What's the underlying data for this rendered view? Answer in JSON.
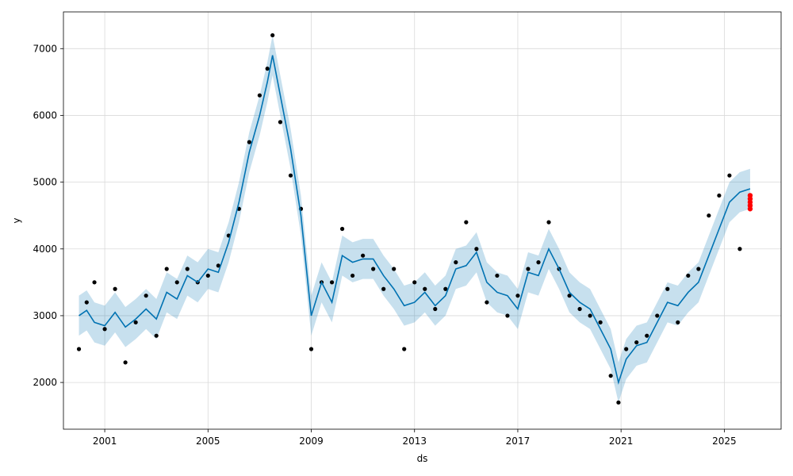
{
  "chart_data": {
    "type": "line",
    "title": "",
    "xlabel": "ds",
    "ylabel": "y",
    "xlim": [
      1999.4,
      2027.2
    ],
    "ylim": [
      1300,
      7550
    ],
    "grid": true,
    "legend": "none",
    "x_ticks": [
      2001,
      2005,
      2009,
      2013,
      2017,
      2021,
      2025
    ],
    "x_tick_labels": [
      "2001",
      "2005",
      "2009",
      "2013",
      "2017",
      "2021",
      "2025"
    ],
    "y_ticks": [
      2000,
      3000,
      4000,
      5000,
      6000,
      7000
    ],
    "y_tick_labels": [
      "2000",
      "3000",
      "4000",
      "5000",
      "6000",
      "7000"
    ],
    "colors": {
      "observed": "#000000",
      "forecast": "#0072B2",
      "band": "#0072B2",
      "highlight": "#FF0000"
    },
    "series": [
      {
        "role": "forecast",
        "x": [
          2000.0,
          2000.3,
          2000.6,
          2001.0,
          2001.4,
          2001.8,
          2002.2,
          2002.6,
          2003.0,
          2003.4,
          2003.8,
          2004.2,
          2004.6,
          2005.0,
          2005.4,
          2005.8,
          2006.2,
          2006.6,
          2007.0,
          2007.3,
          2007.5,
          2007.8,
          2008.2,
          2008.6,
          2009.0,
          2009.4,
          2009.8,
          2010.2,
          2010.6,
          2011.0,
          2011.4,
          2011.8,
          2012.2,
          2012.6,
          2013.0,
          2013.4,
          2013.8,
          2014.2,
          2014.6,
          2015.0,
          2015.4,
          2015.8,
          2016.2,
          2016.6,
          2017.0,
          2017.4,
          2017.8,
          2018.2,
          2018.6,
          2019.0,
          2019.4,
          2019.8,
          2020.2,
          2020.6,
          2020.9,
          2021.2,
          2021.6,
          2022.0,
          2022.4,
          2022.8,
          2023.2,
          2023.6,
          2024.0,
          2024.4,
          2024.8,
          2025.2,
          2025.6,
          2026.0
        ],
        "y": [
          3000,
          3080,
          2900,
          2850,
          3050,
          2830,
          2950,
          3100,
          2950,
          3350,
          3250,
          3600,
          3500,
          3700,
          3650,
          4100,
          4700,
          5450,
          6000,
          6500,
          6900,
          6300,
          5500,
          4500,
          3000,
          3500,
          3200,
          3900,
          3800,
          3850,
          3850,
          3600,
          3400,
          3150,
          3200,
          3350,
          3150,
          3300,
          3700,
          3750,
          3950,
          3500,
          3350,
          3300,
          3100,
          3650,
          3600,
          4000,
          3700,
          3350,
          3200,
          3100,
          2800,
          2500,
          2000,
          2350,
          2550,
          2600,
          2900,
          3200,
          3150,
          3350,
          3500,
          3900,
          4300,
          4700,
          4850,
          4900
        ]
      },
      {
        "role": "observed",
        "x": [
          2000.0,
          2000.3,
          2000.6,
          2001.0,
          2001.4,
          2001.8,
          2002.2,
          2002.6,
          2003.0,
          2003.4,
          2003.8,
          2004.2,
          2004.6,
          2005.0,
          2005.4,
          2005.8,
          2006.2,
          2006.6,
          2007.0,
          2007.3,
          2007.5,
          2007.8,
          2008.2,
          2008.6,
          2009.0,
          2009.4,
          2009.8,
          2010.2,
          2010.6,
          2011.0,
          2011.4,
          2011.8,
          2012.2,
          2012.6,
          2013.0,
          2013.4,
          2013.8,
          2014.2,
          2014.6,
          2015.0,
          2015.4,
          2015.8,
          2016.2,
          2016.6,
          2017.0,
          2017.4,
          2017.8,
          2018.2,
          2018.6,
          2019.0,
          2019.4,
          2019.8,
          2020.2,
          2020.6,
          2020.9,
          2021.2,
          2021.6,
          2022.0,
          2022.4,
          2022.8,
          2023.2,
          2023.6,
          2024.0,
          2024.4,
          2024.8,
          2025.2,
          2025.6,
          2026.0
        ],
        "y": [
          2500,
          3200,
          3500,
          2800,
          3400,
          2300,
          2900,
          3300,
          2700,
          3700,
          3500,
          3700,
          3500,
          3600,
          3750,
          4200,
          4600,
          5600,
          6300,
          6700,
          7200,
          5900,
          5100,
          4600,
          2500,
          3500,
          3500,
          4300,
          3600,
          3900,
          3700,
          3400,
          3700,
          2500,
          3500,
          3400,
          3100,
          3400,
          3800,
          4400,
          4000,
          3200,
          3600,
          3000,
          3300,
          3700,
          3800,
          4400,
          3700,
          3300,
          3100,
          3000,
          2900,
          2100,
          1700,
          2500,
          2600,
          2700,
          3000,
          3400,
          2900,
          3600,
          3700,
          4500,
          4800,
          5100,
          4000,
          4600
        ]
      }
    ],
    "uncertainty_band": {
      "x": [
        2000.0,
        2000.3,
        2000.6,
        2001.0,
        2001.4,
        2001.8,
        2002.2,
        2002.6,
        2003.0,
        2003.4,
        2003.8,
        2004.2,
        2004.6,
        2005.0,
        2005.4,
        2005.8,
        2006.2,
        2006.6,
        2007.0,
        2007.3,
        2007.5,
        2007.8,
        2008.2,
        2008.6,
        2009.0,
        2009.4,
        2009.8,
        2010.2,
        2010.6,
        2011.0,
        2011.4,
        2011.8,
        2012.2,
        2012.6,
        2013.0,
        2013.4,
        2013.8,
        2014.2,
        2014.6,
        2015.0,
        2015.4,
        2015.8,
        2016.2,
        2016.6,
        2017.0,
        2017.4,
        2017.8,
        2018.2,
        2018.6,
        2019.0,
        2019.4,
        2019.8,
        2020.2,
        2020.6,
        2020.9,
        2021.2,
        2021.6,
        2022.0,
        2022.4,
        2022.8,
        2023.2,
        2023.6,
        2024.0,
        2024.4,
        2024.8,
        2025.2,
        2025.6,
        2026.0
      ],
      "half_width": 300
    },
    "recent_points": {
      "x": [
        2026.0,
        2026.0,
        2026.0,
        2026.0,
        2026.0
      ],
      "y": [
        4600,
        4650,
        4700,
        4750,
        4800
      ]
    }
  }
}
